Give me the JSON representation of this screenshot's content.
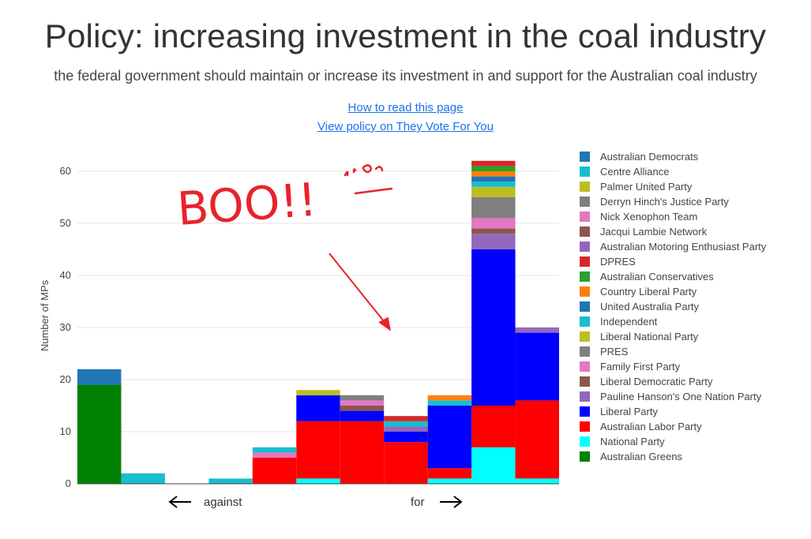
{
  "header": {
    "title": "Policy: increasing investment in the coal industry",
    "subtitle": "the federal government should maintain or increase its investment in and support for the Australian coal industry",
    "link_read": "How to read this page",
    "link_policy": "View policy on They Vote For You"
  },
  "annotation": {
    "text": "BOO!!",
    "color": "#e8232b"
  },
  "chart_data": {
    "type": "bar",
    "stacked": true,
    "ylabel": "Number of MPs",
    "yticks": [
      0,
      10,
      20,
      30,
      40,
      50,
      60
    ],
    "ylim": [
      0,
      63
    ],
    "xlabel_left": "against",
    "xlabel_right": "for",
    "bins": 11,
    "grid": true,
    "legend_position": "right",
    "series": [
      {
        "name": "Australian Greens",
        "color": "#008000",
        "values": [
          19,
          0,
          0,
          0,
          0,
          0,
          0,
          0,
          0,
          0,
          0
        ]
      },
      {
        "name": "National Party",
        "color": "#00ffff",
        "values": [
          0,
          0,
          0,
          0,
          0,
          1,
          0,
          0,
          1,
          7,
          1
        ]
      },
      {
        "name": "Australian Labor Party",
        "color": "#ff0000",
        "values": [
          0,
          0,
          0,
          0,
          5,
          11,
          12,
          8,
          2,
          8,
          15
        ]
      },
      {
        "name": "Liberal Party",
        "color": "#0000ff",
        "values": [
          0,
          0,
          0,
          0,
          0,
          5,
          2,
          2,
          12,
          30,
          13
        ]
      },
      {
        "name": "Pauline Hanson's One Nation Party",
        "color": "#9467bd",
        "values": [
          0,
          0,
          0,
          0,
          0,
          0,
          0,
          1,
          0,
          3,
          1
        ]
      },
      {
        "name": "Liberal Democratic Party",
        "color": "#8c564b",
        "values": [
          0,
          0,
          0,
          0,
          0,
          0,
          1,
          0,
          0,
          1,
          0
        ]
      },
      {
        "name": "Family First Party",
        "color": "#e377c2",
        "values": [
          0,
          0,
          0,
          0,
          1,
          0,
          1,
          0,
          0,
          2,
          0
        ]
      },
      {
        "name": "PRES",
        "color": "#7f7f7f",
        "values": [
          0,
          0,
          0,
          0,
          0,
          0,
          1,
          0,
          0,
          4,
          0
        ]
      },
      {
        "name": "Liberal National Party",
        "color": "#bcbd22",
        "values": [
          0,
          0,
          0,
          0,
          0,
          1,
          0,
          0,
          0,
          2,
          0
        ]
      },
      {
        "name": "Independent",
        "color": "#17becf",
        "values": [
          0,
          2,
          0,
          1,
          1,
          0,
          0,
          1,
          1,
          1,
          0
        ]
      },
      {
        "name": "United Australia Party",
        "color": "#1f77b4",
        "values": [
          3,
          0,
          0,
          0,
          0,
          0,
          0,
          0,
          0,
          1,
          0
        ]
      },
      {
        "name": "Country Liberal Party",
        "color": "#ff7f0e",
        "values": [
          0,
          0,
          0,
          0,
          0,
          0,
          0,
          0,
          1,
          1,
          0
        ]
      },
      {
        "name": "Australian Conservatives",
        "color": "#2ca02c",
        "values": [
          0,
          0,
          0,
          0,
          0,
          0,
          0,
          0,
          0,
          1,
          0
        ]
      },
      {
        "name": "DPRES",
        "color": "#d62728",
        "values": [
          0,
          0,
          0,
          0,
          0,
          0,
          0,
          1,
          0,
          1,
          0
        ]
      },
      {
        "name": "Australian Motoring Enthusiast Party",
        "color": "#9467bd",
        "values": [
          0,
          0,
          0,
          0,
          0,
          0,
          0,
          0,
          0,
          0,
          0
        ]
      },
      {
        "name": "Jacqui Lambie Network",
        "color": "#8c564b",
        "values": [
          0,
          0,
          0,
          0,
          0,
          0,
          0,
          0,
          0,
          0,
          0
        ]
      },
      {
        "name": "Nick Xenophon Team",
        "color": "#e377c2",
        "values": [
          0,
          0,
          0,
          0,
          0,
          0,
          0,
          0,
          0,
          0,
          0
        ]
      },
      {
        "name": "Derryn Hinch's Justice Party",
        "color": "#7f7f7f",
        "values": [
          0,
          0,
          0,
          0,
          0,
          0,
          0,
          0,
          0,
          0,
          0
        ]
      },
      {
        "name": "Palmer United Party",
        "color": "#bcbd22",
        "values": [
          0,
          0,
          0,
          0,
          0,
          0,
          0,
          0,
          0,
          0,
          0
        ]
      },
      {
        "name": "Centre Alliance",
        "color": "#17becf",
        "values": [
          0,
          0,
          0,
          0,
          0,
          0,
          0,
          0,
          0,
          0,
          0
        ]
      },
      {
        "name": "Australian Democrats",
        "color": "#1f77b4",
        "values": [
          0,
          0,
          0,
          0,
          0,
          0,
          0,
          0,
          0,
          0,
          0
        ]
      }
    ]
  }
}
